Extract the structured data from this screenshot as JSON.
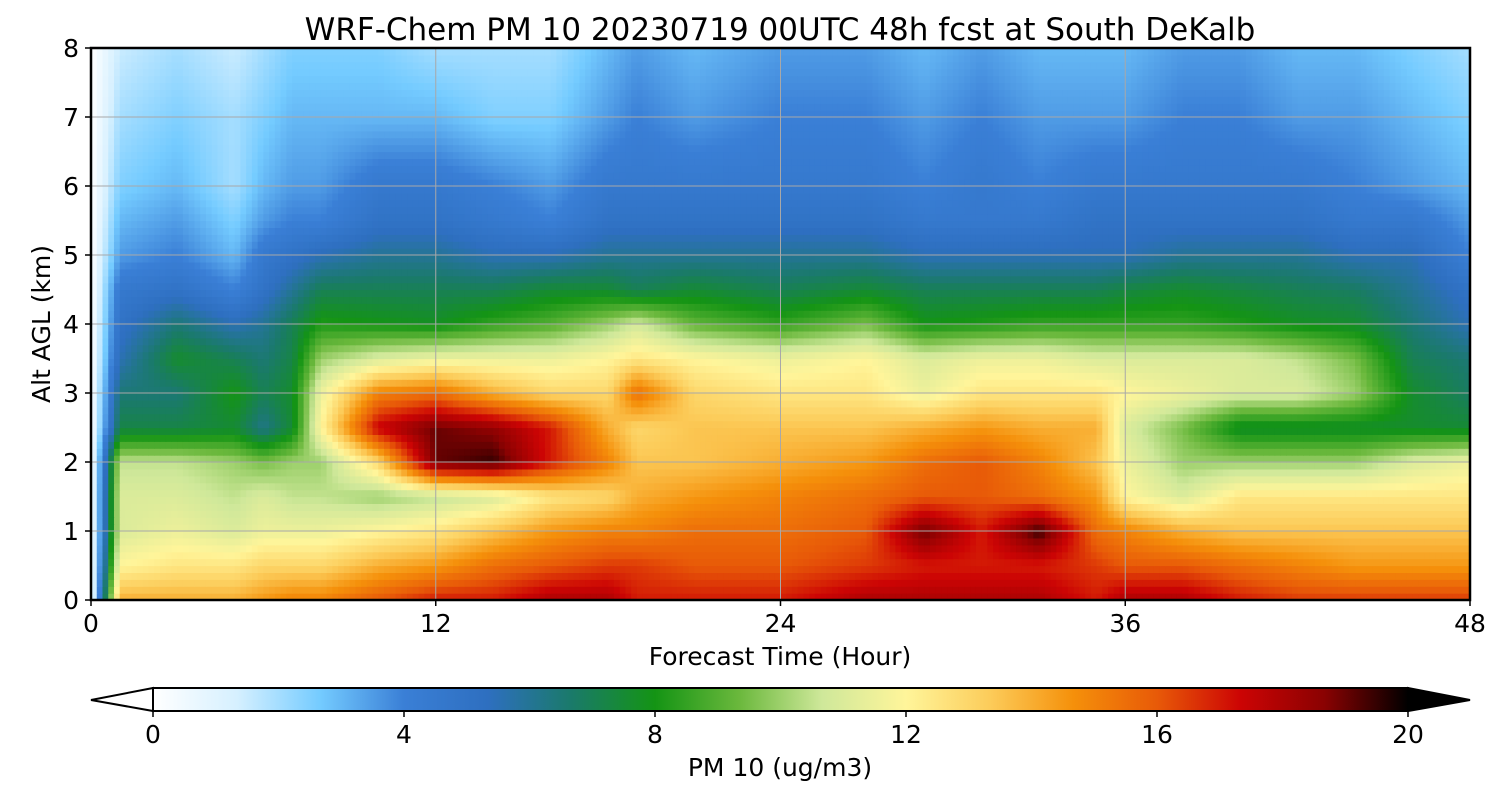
{
  "chart_data": {
    "type": "heatmap",
    "title": "WRF-Chem PM 10  20230719 00UTC 48h fcst at South DeKalb",
    "xlabel": "Forecast Time (Hour)",
    "ylabel": "Alt AGL (km)",
    "xlim": [
      0,
      48
    ],
    "ylim": [
      0,
      8
    ],
    "x_ticks": [
      "0",
      "12",
      "24",
      "36",
      "48"
    ],
    "y_ticks": [
      "0",
      "1",
      "2",
      "3",
      "4",
      "5",
      "6",
      "7",
      "8"
    ],
    "grid": true,
    "colorbar": {
      "label": "PM 10  (ug/m3)",
      "range": [
        0,
        20
      ],
      "ticks": [
        "0",
        "4",
        "8",
        "12",
        "16",
        "20"
      ],
      "extend": "both",
      "colors": [
        "#ffffff",
        "#d6f0ff",
        "#74cbff",
        "#3a7fd6",
        "#2e6fc0",
        "#1a7a6a",
        "#149414",
        "#6ab83c",
        "#cfe89a",
        "#fff59a",
        "#fccc5a",
        "#f5900a",
        "#e85a08",
        "#cc0404",
        "#8a0202",
        "#000000"
      ]
    },
    "x": [
      0,
      1,
      3,
      5,
      6,
      7,
      8,
      10,
      12,
      14,
      16,
      18,
      19,
      21,
      24,
      27,
      29,
      31,
      33,
      35,
      36,
      38,
      40,
      42,
      44,
      46,
      48
    ],
    "y": [
      0,
      0.5,
      1,
      1.5,
      2,
      2.5,
      3,
      3.5,
      4,
      4.5,
      5,
      5.5,
      6,
      7,
      8
    ],
    "z": [
      [
        0,
        14,
        14,
        14,
        14.5,
        15,
        15,
        16,
        17,
        17,
        18,
        18,
        17,
        17,
        17,
        18,
        18,
        18,
        18,
        17,
        18,
        18,
        17,
        16.5,
        16.5,
        16.5,
        16.5
      ],
      [
        0,
        12,
        12.5,
        12.5,
        13,
        13,
        13,
        14,
        14.5,
        15.5,
        16,
        16.5,
        16.5,
        16,
        16,
        16.5,
        17,
        17,
        17,
        16.5,
        16,
        16,
        15.5,
        15,
        14.5,
        14.5,
        14.5
      ],
      [
        0,
        11,
        11.5,
        11,
        11.5,
        11.5,
        11.5,
        12,
        12.5,
        13.5,
        14.5,
        15,
        15,
        15.5,
        15.5,
        16,
        19,
        17,
        19.5,
        15.5,
        15,
        14,
        13.5,
        13.5,
        13.5,
        13.5,
        13.5
      ],
      [
        0,
        11,
        11,
        10.5,
        11,
        10.5,
        10.5,
        10,
        10.5,
        11,
        12.5,
        13,
        14,
        14.5,
        15,
        15.5,
        16,
        16,
        15.5,
        14.5,
        12,
        11,
        12.5,
        12.5,
        12.5,
        12.5,
        12.5
      ],
      [
        0,
        10.5,
        10.5,
        10,
        9.5,
        10,
        10,
        13,
        19,
        19.5,
        17,
        15,
        13.5,
        13.5,
        14,
        14.5,
        15.5,
        16,
        15,
        13.5,
        11.5,
        10,
        10,
        10,
        10,
        11,
        11.5
      ],
      [
        0,
        7.2,
        7.2,
        7.5,
        6.2,
        7.5,
        12,
        17.5,
        19,
        18.5,
        17,
        14,
        13,
        13.5,
        13.5,
        13.5,
        14,
        14.5,
        14,
        14,
        11,
        9.5,
        7.6,
        7.6,
        7.6,
        7.6,
        7.5
      ],
      [
        0,
        6.5,
        6.5,
        8,
        7,
        7.6,
        11.5,
        15,
        15.5,
        14,
        13,
        13,
        15.5,
        13,
        12.5,
        12.5,
        11.5,
        12.5,
        12.5,
        12.5,
        12,
        11.5,
        11,
        11,
        10,
        7.6,
        6.8
      ],
      [
        0,
        5.5,
        7.6,
        7,
        6.5,
        7.2,
        10,
        11,
        11.5,
        11.5,
        11.5,
        12,
        12.5,
        12,
        11.5,
        12,
        11,
        11.5,
        11.5,
        11,
        11,
        11,
        11,
        10.5,
        9.5,
        7,
        6.5
      ],
      [
        0,
        5,
        6.5,
        5.5,
        6,
        7,
        8.2,
        8,
        7.8,
        8.5,
        9,
        10,
        10.8,
        9.2,
        8.5,
        9.5,
        8,
        8.2,
        8.5,
        8.5,
        8.5,
        8.5,
        8.2,
        7.8,
        7.6,
        6.5,
        5.5
      ],
      [
        0,
        4.5,
        5,
        4,
        5,
        6,
        7,
        7,
        7,
        7,
        7.5,
        7.5,
        7,
        7.5,
        7,
        7.5,
        7,
        7,
        7,
        7,
        7.3,
        7.6,
        7.3,
        7,
        6.8,
        6,
        5
      ],
      [
        0,
        3.5,
        4,
        3,
        4.5,
        5,
        5.5,
        6,
        6,
        5.5,
        5.5,
        6,
        6,
        6,
        6,
        6,
        5.5,
        5.5,
        5.5,
        5.5,
        5.5,
        6,
        6,
        6,
        5.5,
        5.5,
        4
      ],
      [
        0,
        3,
        3.5,
        2.5,
        3.5,
        4,
        4,
        5,
        5,
        4.5,
        4,
        5,
        5,
        5,
        5,
        5,
        4.5,
        4.5,
        4.5,
        5,
        5,
        5,
        5,
        5,
        4.5,
        4.5,
        3.5
      ],
      [
        0,
        2.5,
        3,
        2,
        3,
        3.5,
        3.5,
        4.5,
        4.5,
        4,
        3.5,
        4.5,
        4.5,
        4.5,
        4.5,
        4.5,
        4,
        4.5,
        4,
        4.5,
        4.5,
        4.5,
        4.5,
        4.5,
        4,
        3.5,
        3
      ],
      [
        0,
        2,
        2.5,
        2,
        2.5,
        3,
        3,
        3,
        3,
        2.5,
        2.5,
        3.5,
        4,
        3.5,
        4,
        4,
        3.5,
        4,
        3.5,
        3.5,
        3.5,
        4,
        4,
        3.5,
        3.5,
        3,
        2.5
      ],
      [
        0,
        1.5,
        2,
        1.5,
        2,
        2.5,
        2.5,
        2.5,
        2,
        2,
        2,
        3,
        3.5,
        3,
        3.5,
        3.5,
        3,
        3.5,
        3,
        3,
        3,
        3.5,
        3.5,
        3,
        3,
        2.5,
        2
      ]
    ]
  }
}
